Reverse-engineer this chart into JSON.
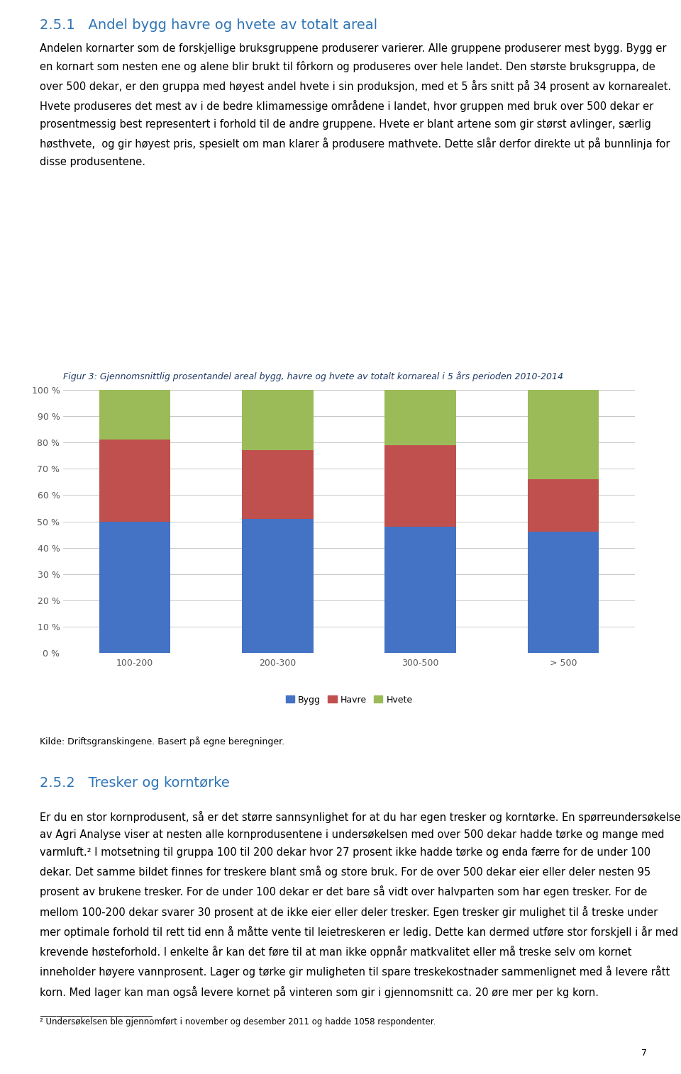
{
  "categories": [
    "100-200",
    "200-300",
    "300-500",
    "> 500"
  ],
  "bygg": [
    50,
    51,
    48,
    46
  ],
  "havre": [
    31,
    26,
    31,
    20
  ],
  "hvete": [
    19,
    23,
    21,
    34
  ],
  "bygg_color": "#4472C4",
  "havre_color": "#C0504D",
  "hvete_color": "#9BBB59",
  "chart_title": "Figur 3: Gjennomsnittlig prosentandel areal bygg, havre og hvete av totalt kornareal i 5 års perioden 2010-2014",
  "ylabel_ticks": [
    "0 %",
    "10 %",
    "20 %",
    "30 %",
    "40 %",
    "50 %",
    "60 %",
    "70 %",
    "80 %",
    "90 %",
    "100 %"
  ],
  "ytick_vals": [
    0,
    10,
    20,
    30,
    40,
    50,
    60,
    70,
    80,
    90,
    100
  ],
  "legend_labels": [
    "Bygg",
    "Havre",
    "Hvete"
  ],
  "source_text": "Kilde: Driftsgranskingene. Basert på egne beregninger.",
  "section_title": "2.5.1   Andel bygg havre og hvete av totalt areal",
  "para1": "Andelen kornarter som de forskjellige bruksgruppene produserer varierer. Alle gruppene produserer mest bygg. Bygg er en kornart som nesten ene og alene blir brukt til fôrkorn og produseres over hele landet. Den største bruksgruppa, de over 500 dekar, er den gruppa med høyest andel hvete i sin produksjon, med et 5 års snitt på 34 prosent av kornarealet. Hvete produseres det mest av i de bedre klimamessige områdene i landet, hvor gruppen med bruk over 500 dekar er prosentmessig best representert i forhold til de andre gruppene. Hvete er blant artene som gir størst avlinger, særlig høsthvete,  og gir høyest pris, spesielt om man klarer å produsere mathvete. Dette slår derfor direkte ut på bunnlinja for disse produsentene.",
  "section2_title": "2.5.2   Tresker og korntørke",
  "para2": "Er du en stor kornprodusent, så er det større sannsynlighet for at du har egen tresker og korntørke. En spørreundersøkelse av Agri Analyse viser at nesten alle kornprodusentene i undersøkelsen med over 500 dekar hadde tørke og mange med varmluft.² I motsetning til gruppa 100 til 200 dekar hvor 27 prosent ikke hadde tørke og enda færre for de under 100 dekar. Det samme bildet finnes for treskere blant små og store bruk. For de over 500 dekar eier eller deler nesten 95 prosent av brukene tresker. For de under 100 dekar er det bare så vidt over halvparten som har egen tresker. For de mellom 100-200 dekar svarer 30 prosent at de ikke eier eller deler tresker. Egen tresker gir mulighet til å treske under mer optimale forhold til rett tid enn å måtte vente til leietreskeren er ledig. Dette kan dermed utføre stor forskjell i år med krevende høsteforhold. I enkelte år kan det føre til at man ikke oppnår matkvalitet eller må treske selv om kornet inneholder høyere vannprosent. Lager og tørke gir muligheten til spare treskekostnader sammenlignet med å levere rått korn. Med lager kan man også levere kornet på vinteren som gir i gjennomsnitt ca. 20 øre mer per kg korn.",
  "footnote_line": "___________________________",
  "footnote": "² Undersøkelsen ble gjennomført i november og desember 2011 og hadde 1058 respondenter.",
  "page_num": "7",
  "fig_width": 9.6,
  "fig_height": 15.15,
  "dpi": 100,
  "bar_width": 0.5,
  "chart_bg": "#FFFFFF",
  "grid_color": "#C8C8C8",
  "title_color": "#1F3864",
  "section_color": "#2E74B5",
  "body_text_color": "#000000",
  "axis_text_color": "#595959",
  "chart_title_color": "#1F3864",
  "title_fontsize": 14,
  "section2_fontsize": 14,
  "body_fontsize": 10.5,
  "chart_title_fontsize": 9,
  "axis_fontsize": 9,
  "legend_fontsize": 9,
  "source_fontsize": 9,
  "footnote_fontsize": 8.5,
  "page_num_fontsize": 9
}
